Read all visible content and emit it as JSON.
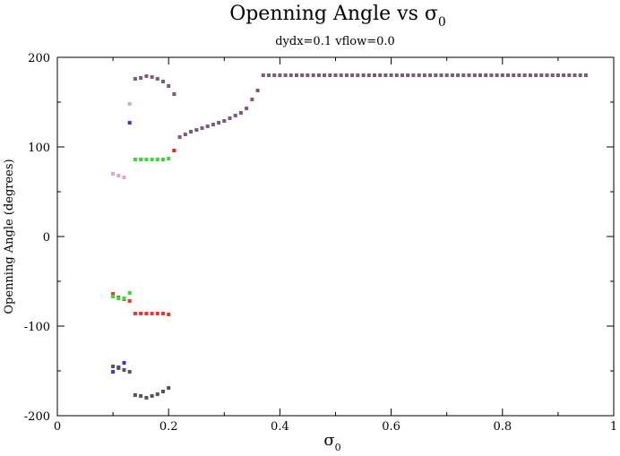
{
  "chart_data": {
    "type": "scatter",
    "title": "Openning Angle vs σ",
    "title_subscript": "0",
    "subtitle": "dydx=0.1 vflow=0.0",
    "xlabel": "σ",
    "xlabel_subscript": "0",
    "ylabel": "Openning Angle (degrees)",
    "xlim": [
      0,
      1
    ],
    "ylim": [
      -200,
      200
    ],
    "xticks": [
      0,
      0.2,
      0.4,
      0.6,
      0.8,
      1
    ],
    "xtick_labels": [
      "0",
      "0.2",
      "0.4",
      "0.6",
      "0.8",
      "1"
    ],
    "yticks": [
      -200,
      -100,
      0,
      100,
      200
    ],
    "ytick_labels": [
      "-200",
      "-100",
      "0",
      "100",
      "200"
    ],
    "grid": false,
    "series": [
      {
        "color": "#7a5c7a",
        "x": [
          0.14,
          0.15,
          0.16,
          0.17,
          0.18,
          0.19,
          0.2,
          0.21,
          0.22,
          0.23,
          0.24,
          0.25,
          0.26,
          0.27,
          0.28,
          0.29,
          0.3,
          0.31,
          0.32,
          0.33,
          0.34,
          0.35,
          0.36,
          0.37,
          0.38,
          0.39,
          0.4,
          0.41,
          0.42,
          0.43,
          0.44,
          0.45,
          0.46,
          0.47,
          0.48,
          0.49,
          0.5,
          0.51,
          0.52,
          0.53,
          0.54,
          0.55,
          0.56,
          0.57,
          0.58,
          0.59,
          0.6,
          0.61,
          0.62,
          0.63,
          0.64,
          0.65,
          0.66,
          0.67,
          0.68,
          0.69,
          0.7,
          0.71,
          0.72,
          0.73,
          0.74,
          0.75,
          0.76,
          0.77,
          0.78,
          0.79,
          0.8,
          0.81,
          0.82,
          0.83,
          0.84,
          0.85,
          0.86,
          0.87,
          0.88,
          0.89,
          0.9,
          0.91,
          0.92,
          0.93,
          0.94,
          0.95
        ],
        "y": [
          176,
          177,
          179,
          178,
          176,
          173,
          168,
          159,
          111,
          114,
          117,
          119,
          121,
          123,
          125,
          127,
          129,
          132,
          135,
          138,
          143,
          153,
          163,
          180,
          180,
          180,
          180,
          180,
          180,
          180,
          180,
          180,
          180,
          180,
          180,
          180,
          180,
          180,
          180,
          180,
          180,
          180,
          180,
          180,
          180,
          180,
          180,
          180,
          180,
          180,
          180,
          180,
          180,
          180,
          180,
          180,
          180,
          180,
          180,
          180,
          180,
          180,
          180,
          180,
          180,
          180,
          180,
          180,
          180,
          180,
          180,
          180,
          180,
          180,
          180,
          180,
          180,
          180,
          180,
          180,
          180,
          180
        ]
      },
      {
        "color": "#d9a8c4",
        "x": [
          0.1,
          0.11,
          0.12,
          0.13
        ],
        "y": [
          70,
          68,
          66,
          148
        ]
      },
      {
        "color": "#3333ee",
        "x": [
          0.13
        ],
        "y": [
          127
        ]
      },
      {
        "color": "#33dd33",
        "x": [
          0.14,
          0.15,
          0.16,
          0.17,
          0.18,
          0.19,
          0.2
        ],
        "y": [
          86,
          86,
          86,
          86,
          86,
          86,
          87
        ]
      },
      {
        "color": "#ee2222",
        "x": [
          0.21
        ],
        "y": [
          96
        ]
      },
      {
        "color": "#ee3333",
        "x": [
          0.1,
          0.11,
          0.12,
          0.13,
          0.14,
          0.15,
          0.16,
          0.17,
          0.18,
          0.19,
          0.2
        ],
        "y": [
          -64,
          -68,
          -70,
          -72,
          -86,
          -86,
          -86,
          -86,
          -86,
          -86,
          -87
        ]
      },
      {
        "color": "#33dd33",
        "x": [
          0.1,
          0.11,
          0.12,
          0.13
        ],
        "y": [
          -67,
          -69,
          -69,
          -63
        ]
      },
      {
        "color": "#3333ee",
        "x": [
          0.1,
          0.11,
          0.12
        ],
        "y": [
          -151,
          -146,
          -141
        ]
      },
      {
        "color": "#555555",
        "x": [
          0.1,
          0.11,
          0.12,
          0.13,
          0.14,
          0.15,
          0.16,
          0.17,
          0.18,
          0.19,
          0.2
        ],
        "y": [
          -145,
          -147,
          -149,
          -151,
          -177,
          -178,
          -180,
          -178,
          -176,
          -173,
          -169
        ]
      }
    ]
  }
}
